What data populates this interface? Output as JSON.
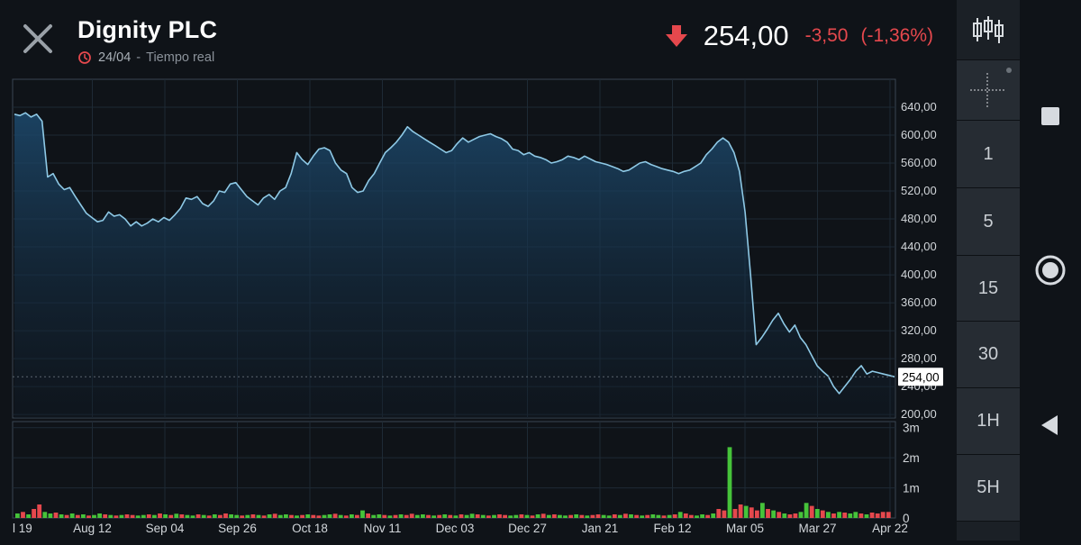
{
  "header": {
    "title": "Dignity PLC",
    "date": "24/04",
    "separator": "-",
    "mode": "Tiempo real",
    "price": "254,00",
    "change": "-3,50",
    "change_pct": "(-1,36%)"
  },
  "colors": {
    "line": "#8ec9e6",
    "down": "#e5484d",
    "up": "#46c33a",
    "grid": "#1e2a35"
  },
  "icons": {
    "close": "close-icon",
    "clock": "clock-icon",
    "down_arrow": "arrow-down-icon",
    "candles": "candlestick-icon",
    "crosshair": "crosshair-icon"
  },
  "toolbar": {
    "intervals": [
      "1",
      "5",
      "15",
      "30",
      "1H",
      "5H"
    ]
  },
  "chart_data": [
    {
      "type": "line",
      "price_tag": "254,00",
      "ylim": [
        195,
        680
      ],
      "y_ticks": [
        "640,00",
        "600,00",
        "560,00",
        "520,00",
        "480,00",
        "440,00",
        "400,00",
        "360,00",
        "320,00",
        "280,00",
        "240,00",
        "200,00"
      ],
      "x_ticks": [
        "l 19",
        "Aug 12",
        "Sep 04",
        "Sep 26",
        "Oct 18",
        "Nov 11",
        "Dec 03",
        "Dec 27",
        "Jan 21",
        "Feb 12",
        "Mar 05",
        "Mar 27",
        "Apr 22"
      ],
      "series": [
        {
          "values": [
            630,
            628,
            632,
            626,
            630,
            620,
            540,
            545,
            530,
            522,
            525,
            512,
            500,
            488,
            482,
            476,
            478,
            490,
            484,
            486,
            480,
            470,
            476,
            470,
            474,
            480,
            476,
            482,
            478,
            486,
            495,
            510,
            508,
            512,
            502,
            498,
            506,
            520,
            518,
            530,
            532,
            522,
            512,
            506,
            500,
            510,
            515,
            508,
            520,
            525,
            545,
            575,
            565,
            558,
            570,
            580,
            582,
            578,
            560,
            550,
            545,
            525,
            518,
            520,
            535,
            545,
            560,
            575,
            582,
            590,
            600,
            612,
            605,
            600,
            595,
            590,
            585,
            580,
            575,
            578,
            588,
            596,
            590,
            594,
            598,
            600,
            602,
            598,
            595,
            590,
            580,
            578,
            572,
            575,
            570,
            568,
            565,
            560,
            562,
            565,
            570,
            568,
            565,
            570,
            566,
            562,
            560,
            558,
            555,
            552,
            548,
            550,
            555,
            560,
            562,
            558,
            555,
            552,
            550,
            548,
            545,
            548,
            550,
            555,
            560,
            572,
            580,
            590,
            596,
            590,
            575,
            548,
            490,
            400,
            300,
            310,
            322,
            335,
            345,
            330,
            318,
            328,
            310,
            300,
            285,
            270,
            262,
            255,
            240,
            230,
            240,
            250,
            262,
            270,
            258,
            262,
            260,
            258,
            256,
            254
          ]
        }
      ]
    },
    {
      "type": "bar",
      "ylim": [
        0,
        3.2
      ],
      "y_ticks": [
        "3m",
        "2m",
        "1m",
        "0"
      ],
      "series": [
        {
          "name": "volume",
          "values": [
            0.15,
            0.2,
            0.12,
            0.3,
            0.45,
            0.2,
            0.15,
            0.18,
            0.12,
            0.1,
            0.15,
            0.1,
            0.12,
            0.08,
            0.1,
            0.15,
            0.12,
            0.1,
            0.08,
            0.1,
            0.12,
            0.1,
            0.08,
            0.1,
            0.12,
            0.1,
            0.15,
            0.12,
            0.1,
            0.14,
            0.12,
            0.1,
            0.08,
            0.12,
            0.1,
            0.08,
            0.12,
            0.1,
            0.15,
            0.12,
            0.1,
            0.08,
            0.1,
            0.12,
            0.1,
            0.08,
            0.12,
            0.14,
            0.1,
            0.12,
            0.1,
            0.08,
            0.1,
            0.12,
            0.1,
            0.08,
            0.1,
            0.12,
            0.14,
            0.1,
            0.08,
            0.12,
            0.1,
            0.25,
            0.15,
            0.1,
            0.12,
            0.1,
            0.08,
            0.1,
            0.12,
            0.1,
            0.14,
            0.1,
            0.12,
            0.1,
            0.08,
            0.1,
            0.12,
            0.1,
            0.08,
            0.12,
            0.1,
            0.14,
            0.12,
            0.1,
            0.08,
            0.1,
            0.12,
            0.1,
            0.08,
            0.1,
            0.12,
            0.1,
            0.08,
            0.12,
            0.14,
            0.1,
            0.12,
            0.1,
            0.08,
            0.1,
            0.12,
            0.1,
            0.08,
            0.1,
            0.12,
            0.1,
            0.08,
            0.12,
            0.1,
            0.14,
            0.12,
            0.1,
            0.08,
            0.1,
            0.12,
            0.1,
            0.08,
            0.1,
            0.12,
            0.2,
            0.15,
            0.1,
            0.08,
            0.12,
            0.1,
            0.15,
            0.3,
            0.25,
            2.35,
            0.3,
            0.45,
            0.4,
            0.35,
            0.25,
            0.5,
            0.3,
            0.25,
            0.2,
            0.15,
            0.12,
            0.15,
            0.2,
            0.5,
            0.4,
            0.3,
            0.25,
            0.2,
            0.15,
            0.2,
            0.18,
            0.15,
            0.2,
            0.15,
            0.12,
            0.18,
            0.15,
            0.2,
            0.2
          ],
          "directions": "GRGRRGGRGRGRGRGGRGRGRRGGRGRGRGRGGRGRGRRGGRGRGRGRGGRGRGRRGGRGRGRGRGGRGRGRRGGRGRGRGRGGRGRGRRGGRGRGRGRGGRGRGRRGGRGRGRGRGGRGRGRRGGRGRRGRRGRRGRGRGRRGGRGRGRGRGGRGRRRRGGRGRG"
        }
      ]
    }
  ]
}
